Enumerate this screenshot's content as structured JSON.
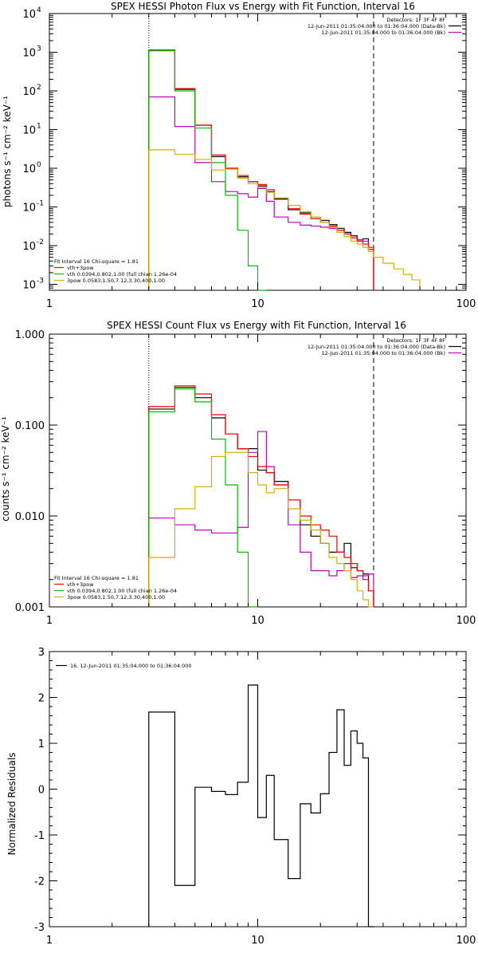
{
  "chart_data": [
    {
      "type": "line",
      "title": "SPEX HESSI Photon Flux vs Energy with Fit Function, Interval 16",
      "ylabel": "photons s⁻¹ cm⁻² keV⁻¹",
      "xscale": "log",
      "yscale": "log",
      "xlim": [
        1,
        100
      ],
      "ylim": [
        0.0007,
        10000
      ],
      "xticks": [
        {
          "v": 1,
          "t": "1"
        },
        {
          "v": 10,
          "t": "10"
        },
        {
          "v": 100,
          "t": "100"
        }
      ],
      "yticks": [
        {
          "v": 0.001,
          "t": "10",
          "e": "-3"
        },
        {
          "v": 0.01,
          "t": "10",
          "e": "-2"
        },
        {
          "v": 0.1,
          "t": "10",
          "e": "-1"
        },
        {
          "v": 1,
          "t": "10",
          "e": "0"
        },
        {
          "v": 10,
          "t": "10",
          "e": "1"
        },
        {
          "v": 100,
          "t": "10",
          "e": "2"
        },
        {
          "v": 1000,
          "t": "10",
          "e": "3"
        },
        {
          "v": 10000,
          "t": "10",
          "e": "4"
        }
      ],
      "vlines": [
        {
          "x": 3,
          "style": "dotted"
        },
        {
          "x": 36,
          "style": "dashed"
        }
      ],
      "legend_top_right": [
        {
          "text": "Detectors: 1F 3F 4F 8F",
          "color": "#000000"
        },
        {
          "text": "12-Jun-2011 01:35:04.000 to 01:36:04.000 (Data-Bk)",
          "color": "#000000"
        },
        {
          "text": "12-Jun-2011 01:35:04.000 to 01:36:04.000 (Bk)",
          "color": "#c000c0"
        }
      ],
      "legend_bottom_left": [
        {
          "text": "Fit Interval 16   Chi-square = 1.81",
          "color": "#000000"
        },
        {
          "text": "vth+3pow",
          "color": "#ff0000"
        },
        {
          "text": "vth 0.0394,0.802,1.00  (full chian 1.26e-04",
          "color": "#00c000"
        },
        {
          "text": "3pow 0.0583,1.50,7.12,3.30,400,1.00",
          "color": "#d4b000"
        }
      ],
      "edges": [
        3,
        4,
        5,
        6,
        7,
        8,
        9,
        10,
        11,
        12,
        14,
        16,
        18,
        20,
        22,
        24,
        26,
        28,
        30,
        32,
        34,
        36,
        40,
        45,
        50,
        55,
        60
      ],
      "series": [
        {
          "name": "Data-Bk",
          "color": "#000000",
          "values": [
            1100,
            110,
            13,
            2,
            1.0,
            0.6,
            0.45,
            0.35,
            0.25,
            0.16,
            0.085,
            0.07,
            0.055,
            0.045,
            0.035,
            0.028,
            0.022,
            0.018,
            0.014,
            0.015,
            0.008,
            null,
            null,
            null,
            null,
            null
          ]
        },
        {
          "name": "Bk",
          "color": "#c000c0",
          "values": [
            70,
            12,
            1.4,
            0.45,
            0.25,
            0.22,
            0.18,
            0.3,
            0.14,
            0.055,
            0.04,
            0.034,
            0.032,
            0.03,
            0.028,
            0.025,
            0.02,
            0.016,
            0.014,
            0.013,
            0.008,
            null,
            null,
            null,
            null,
            null
          ]
        },
        {
          "name": "vth+3pow",
          "color": "#ff0000",
          "values": [
            1150,
            115,
            13,
            2.2,
            1.0,
            0.65,
            0.45,
            0.38,
            0.28,
            0.17,
            0.09,
            0.065,
            0.05,
            0.04,
            0.032,
            0.025,
            0.02,
            0.016,
            0.013,
            0.011,
            0.009,
            null,
            null,
            null,
            null,
            null
          ]
        },
        {
          "name": "vth",
          "color": "#00c000",
          "values": [
            1100,
            100,
            11,
            1.4,
            0.2,
            0.025,
            0.003,
            0.0006,
            null,
            null,
            null,
            null,
            null,
            null,
            null,
            null,
            null,
            null,
            null,
            null,
            null,
            null,
            null,
            null,
            null,
            null
          ]
        },
        {
          "name": "3pow",
          "color": "#d4b000",
          "values": [
            3.0,
            2.3,
            1.7,
            0.9,
            0.95,
            0.55,
            0.4,
            0.32,
            0.24,
            0.17,
            0.11,
            0.075,
            0.055,
            0.04,
            0.03,
            0.022,
            0.017,
            0.013,
            0.011,
            0.009,
            0.007,
            0.005,
            0.0035,
            0.0025,
            0.0018,
            0.0013
          ]
        }
      ]
    },
    {
      "type": "line",
      "title": "SPEX HESSI Count Flux vs Energy with Fit Function, Interval 16",
      "ylabel": "counts s⁻¹ cm⁻² keV⁻¹",
      "xscale": "log",
      "yscale": "log",
      "xlim": [
        1,
        100
      ],
      "ylim": [
        0.001,
        1
      ],
      "xticks": [
        {
          "v": 1,
          "t": "1"
        },
        {
          "v": 10,
          "t": "10"
        },
        {
          "v": 100,
          "t": "100"
        }
      ],
      "yticks": [
        {
          "v": 0.001,
          "t": "0.001"
        },
        {
          "v": 0.01,
          "t": "0.010"
        },
        {
          "v": 0.1,
          "t": "0.100"
        },
        {
          "v": 1,
          "t": "1.000"
        }
      ],
      "vlines": [
        {
          "x": 3,
          "style": "dotted"
        },
        {
          "x": 36,
          "style": "dashed"
        }
      ],
      "legend_top_right": [
        {
          "text": "Detectors: 1F 3F 4F 8F",
          "color": "#000000"
        },
        {
          "text": "12-Jun-2011 01:35:04.000 to 01:36:04.000 (Data-Bk)",
          "color": "#000000"
        },
        {
          "text": "12-Jun-2011 01:35:04.000 to 01:36:04.000 (Bk)",
          "color": "#c000c0"
        }
      ],
      "legend_bottom_left": [
        {
          "text": "Fit Interval 16   Chi-square = 1.81",
          "color": "#000000"
        },
        {
          "text": "vth+3pow",
          "color": "#ff0000"
        },
        {
          "text": "vth 0.0394,0.802,1.00  (full chian 1.26e-04",
          "color": "#00c000"
        },
        {
          "text": "3pow 0.0583,1.50,7.12,3.30,400,1.00",
          "color": "#d4b000"
        }
      ],
      "edges": [
        3,
        4,
        5,
        6,
        7,
        8,
        9,
        10,
        11,
        12,
        14,
        16,
        18,
        20,
        22,
        24,
        26,
        28,
        30,
        32,
        34,
        36
      ],
      "series": [
        {
          "name": "Data-Bk",
          "color": "#000000",
          "values": [
            0.15,
            0.26,
            0.2,
            0.12,
            0.08,
            0.055,
            0.055,
            0.032,
            0.03,
            0.024,
            0.015,
            0.008,
            0.006,
            0.005,
            0.004,
            0.004,
            0.005,
            0.0027,
            0.0025,
            0.0023,
            0.0015
          ]
        },
        {
          "name": "Bk",
          "color": "#c000c0",
          "values": [
            0.0095,
            0.008,
            0.007,
            0.0065,
            0.0065,
            0.0075,
            0.05,
            0.085,
            0.035,
            0.022,
            0.008,
            0.004,
            0.0025,
            0.0025,
            0.0022,
            0.0025,
            0.003,
            0.0021,
            0.0022,
            0.0022,
            0.0023
          ]
        },
        {
          "name": "vth+3pow",
          "color": "#ff0000",
          "values": [
            0.16,
            0.27,
            0.22,
            0.13,
            0.08,
            0.055,
            0.045,
            0.035,
            0.03,
            0.022,
            0.015,
            0.01,
            0.008,
            0.007,
            0.006,
            0.004,
            0.0035,
            0.003,
            0.0025,
            0.002,
            0.0015
          ]
        },
        {
          "name": "vth",
          "color": "#00c000",
          "values": [
            0.14,
            0.25,
            0.18,
            0.07,
            0.022,
            0.004,
            0.0005,
            null,
            null,
            null,
            null,
            null,
            null,
            null,
            null,
            null,
            null,
            null,
            null,
            null,
            null
          ]
        },
        {
          "name": "3pow",
          "color": "#d4b000",
          "values": [
            0.0035,
            0.012,
            0.021,
            0.045,
            0.05,
            0.05,
            0.03,
            0.022,
            0.018,
            0.02,
            0.012,
            0.009,
            0.007,
            0.005,
            0.0035,
            0.003,
            0.0025,
            0.002,
            0.0015,
            0.0012,
            0.001
          ]
        }
      ]
    },
    {
      "type": "line",
      "title": "",
      "ylabel": "Normalized Residuals",
      "xscale": "log",
      "yscale": "linear",
      "xlim": [
        1,
        100
      ],
      "ylim": [
        -3,
        3
      ],
      "xticks": [
        {
          "v": 1,
          "t": "1"
        },
        {
          "v": 10,
          "t": "10"
        },
        {
          "v": 100,
          "t": "100"
        }
      ],
      "yticks": [
        {
          "v": -3,
          "t": "-3"
        },
        {
          "v": -2,
          "t": "-2"
        },
        {
          "v": -1,
          "t": "-1"
        },
        {
          "v": 0,
          "t": "0"
        },
        {
          "v": 1,
          "t": "1"
        },
        {
          "v": 2,
          "t": "2"
        },
        {
          "v": 3,
          "t": "3"
        }
      ],
      "legend_top_left": [
        {
          "text": "16. 12-Jun-2011 01:35:04.000 to 01:36:04.000",
          "color": "#000000"
        }
      ],
      "edges": [
        3,
        4,
        5,
        6,
        7,
        8,
        9,
        10,
        11,
        12,
        14,
        16,
        18,
        20,
        22,
        24,
        26,
        28,
        30,
        32,
        34,
        36
      ],
      "series": [
        {
          "name": "16. 12-Jun-2011 01:35:04.000 to 01:36:04.000",
          "color": "#000000",
          "values": [
            1.68,
            -2.1,
            0.04,
            -0.05,
            -0.12,
            0.15,
            2.27,
            -0.62,
            0.3,
            -1.1,
            -1.95,
            -0.32,
            -0.52,
            -0.1,
            0.8,
            1.73,
            0.52,
            1.27,
            1.0,
            0.68,
            -3.2
          ]
        }
      ]
    }
  ]
}
